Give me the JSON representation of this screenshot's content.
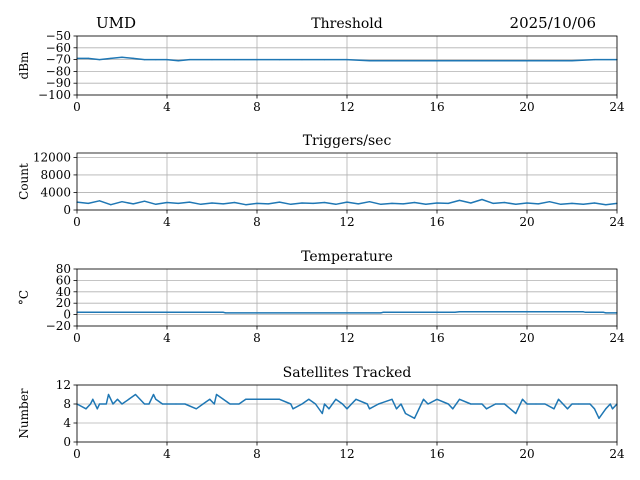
{
  "header": {
    "left": "UMD",
    "right": "2025/10/06"
  },
  "colors": {
    "series": "#1f77b4",
    "grid": "#b0b0b0",
    "axis": "#000000"
  },
  "chart_data": [
    {
      "type": "line",
      "title": "Threshold",
      "xlabel": "",
      "ylabel": "dBm",
      "xlim": [
        0,
        24
      ],
      "ylim": [
        -100,
        -50
      ],
      "xticks": [
        0,
        4,
        8,
        12,
        16,
        20,
        24
      ],
      "yticks": [
        -100,
        -90,
        -80,
        -70,
        -60,
        -50
      ],
      "ytick_labels": [
        "−100",
        "−90",
        "−80",
        "−70",
        "−60",
        "−50"
      ],
      "grid": true,
      "series": [
        {
          "x": [
            0,
            0.5,
            1,
            1.5,
            2,
            2.5,
            3,
            3.5,
            4,
            4.5,
            5,
            6,
            7,
            8,
            9,
            10,
            11,
            12,
            13,
            14,
            15,
            16,
            17,
            18,
            19,
            20,
            21,
            22,
            23,
            24
          ],
          "values": [
            -69,
            -69,
            -70,
            -69,
            -68,
            -69,
            -70,
            -70,
            -70,
            -71,
            -70,
            -70,
            -70,
            -70,
            -70,
            -70,
            -70,
            -70,
            -71,
            -71,
            -71,
            -71,
            -71,
            -71,
            -71,
            -71,
            -71,
            -71,
            -70,
            -70
          ]
        }
      ]
    },
    {
      "type": "line",
      "title": "Triggers/sec",
      "xlabel": "",
      "ylabel": "Count",
      "xlim": [
        0,
        24
      ],
      "ylim": [
        0,
        13000
      ],
      "xticks": [
        0,
        4,
        8,
        12,
        16,
        20,
        24
      ],
      "yticks": [
        0,
        4000,
        8000,
        12000
      ],
      "ytick_labels": [
        "0",
        "4000",
        "8000",
        "12000"
      ],
      "grid": true,
      "series": [
        {
          "x": [
            0,
            0.5,
            1,
            1.5,
            2,
            2.5,
            3,
            3.5,
            4,
            4.5,
            5,
            5.5,
            6,
            6.5,
            7,
            7.5,
            8,
            8.5,
            9,
            9.5,
            10,
            10.5,
            11,
            11.5,
            12,
            12.5,
            13,
            13.5,
            14,
            14.5,
            15,
            15.5,
            16,
            16.5,
            17,
            17.5,
            18,
            18.5,
            19,
            19.5,
            20,
            20.5,
            21,
            21.5,
            22,
            22.5,
            23,
            23.5,
            24
          ],
          "values": [
            1800,
            1500,
            2100,
            1200,
            1900,
            1400,
            2000,
            1300,
            1700,
            1500,
            1800,
            1300,
            1600,
            1400,
            1700,
            1200,
            1500,
            1400,
            1800,
            1300,
            1600,
            1500,
            1700,
            1300,
            1800,
            1400,
            1900,
            1300,
            1500,
            1400,
            1700,
            1300,
            1600,
            1500,
            2200,
            1600,
            2400,
            1500,
            1700,
            1300,
            1600,
            1400,
            1900,
            1300,
            1500,
            1300,
            1600,
            1200,
            1500
          ]
        }
      ]
    },
    {
      "type": "line",
      "title": "Temperature",
      "xlabel": "",
      "ylabel": "°C",
      "xlim": [
        0,
        24
      ],
      "ylim": [
        -20,
        80
      ],
      "xticks": [
        0,
        4,
        8,
        12,
        16,
        20,
        24
      ],
      "yticks": [
        -20,
        0,
        20,
        40,
        60,
        80
      ],
      "ytick_labels": [
        "−20",
        "0",
        "20",
        "40",
        "60",
        "80"
      ],
      "grid": true,
      "series": [
        {
          "x": [
            0,
            6.5,
            6.6,
            13.5,
            13.6,
            16.8,
            17,
            22.5,
            22.6,
            23.4,
            23.5,
            24
          ],
          "values": [
            4,
            4,
            3,
            3,
            4,
            4,
            5,
            5,
            4,
            4,
            3,
            3
          ]
        }
      ]
    },
    {
      "type": "line",
      "title": "Satellites Tracked",
      "xlabel": "",
      "ylabel": "Number",
      "xlim": [
        0,
        24
      ],
      "ylim": [
        0,
        12
      ],
      "xticks": [
        0,
        4,
        8,
        12,
        16,
        20,
        24
      ],
      "yticks": [
        0,
        4,
        8,
        12
      ],
      "ytick_labels": [
        "0",
        "4",
        "8",
        "12"
      ],
      "grid": true,
      "series": [
        {
          "x": [
            0,
            0.4,
            0.6,
            0.7,
            0.9,
            1,
            1.3,
            1.4,
            1.5,
            1.6,
            1.8,
            2,
            2.3,
            2.6,
            3,
            3.2,
            3.4,
            3.5,
            3.8,
            4,
            4.4,
            4.8,
            5.3,
            5.6,
            5.9,
            6.1,
            6.2,
            6.5,
            6.8,
            7.2,
            7.5,
            8,
            8.4,
            9,
            9.5,
            9.6,
            10,
            10.3,
            10.6,
            10.9,
            11,
            11.2,
            11.5,
            11.8,
            12,
            12.2,
            12.4,
            12.9,
            13,
            13.4,
            14,
            14.2,
            14.4,
            14.6,
            15,
            15.2,
            15.4,
            15.6,
            16,
            16.5,
            16.7,
            17,
            17.5,
            18,
            18.2,
            18.6,
            19,
            19.5,
            19.8,
            20,
            20.4,
            20.8,
            21.2,
            21.4,
            21.6,
            21.8,
            22,
            22.3,
            22.8,
            23,
            23.2,
            23.5,
            23.7,
            23.8,
            24
          ],
          "values": [
            8,
            7,
            8,
            9,
            7,
            8,
            8,
            10,
            9,
            8,
            9,
            8,
            9,
            10,
            8,
            8,
            10,
            9,
            8,
            8,
            8,
            8,
            7,
            8,
            9,
            8,
            10,
            9,
            8,
            8,
            9,
            9,
            9,
            9,
            8,
            7,
            8,
            9,
            8,
            6,
            8,
            7,
            9,
            8,
            7,
            8,
            9,
            8,
            7,
            8,
            9,
            7,
            8,
            6,
            5,
            7,
            9,
            8,
            9,
            8,
            7,
            9,
            8,
            8,
            7,
            8,
            8,
            6,
            9,
            8,
            8,
            8,
            7,
            9,
            8,
            7,
            8,
            8,
            8,
            7,
            5,
            7,
            8,
            7,
            8
          ]
        }
      ]
    }
  ]
}
